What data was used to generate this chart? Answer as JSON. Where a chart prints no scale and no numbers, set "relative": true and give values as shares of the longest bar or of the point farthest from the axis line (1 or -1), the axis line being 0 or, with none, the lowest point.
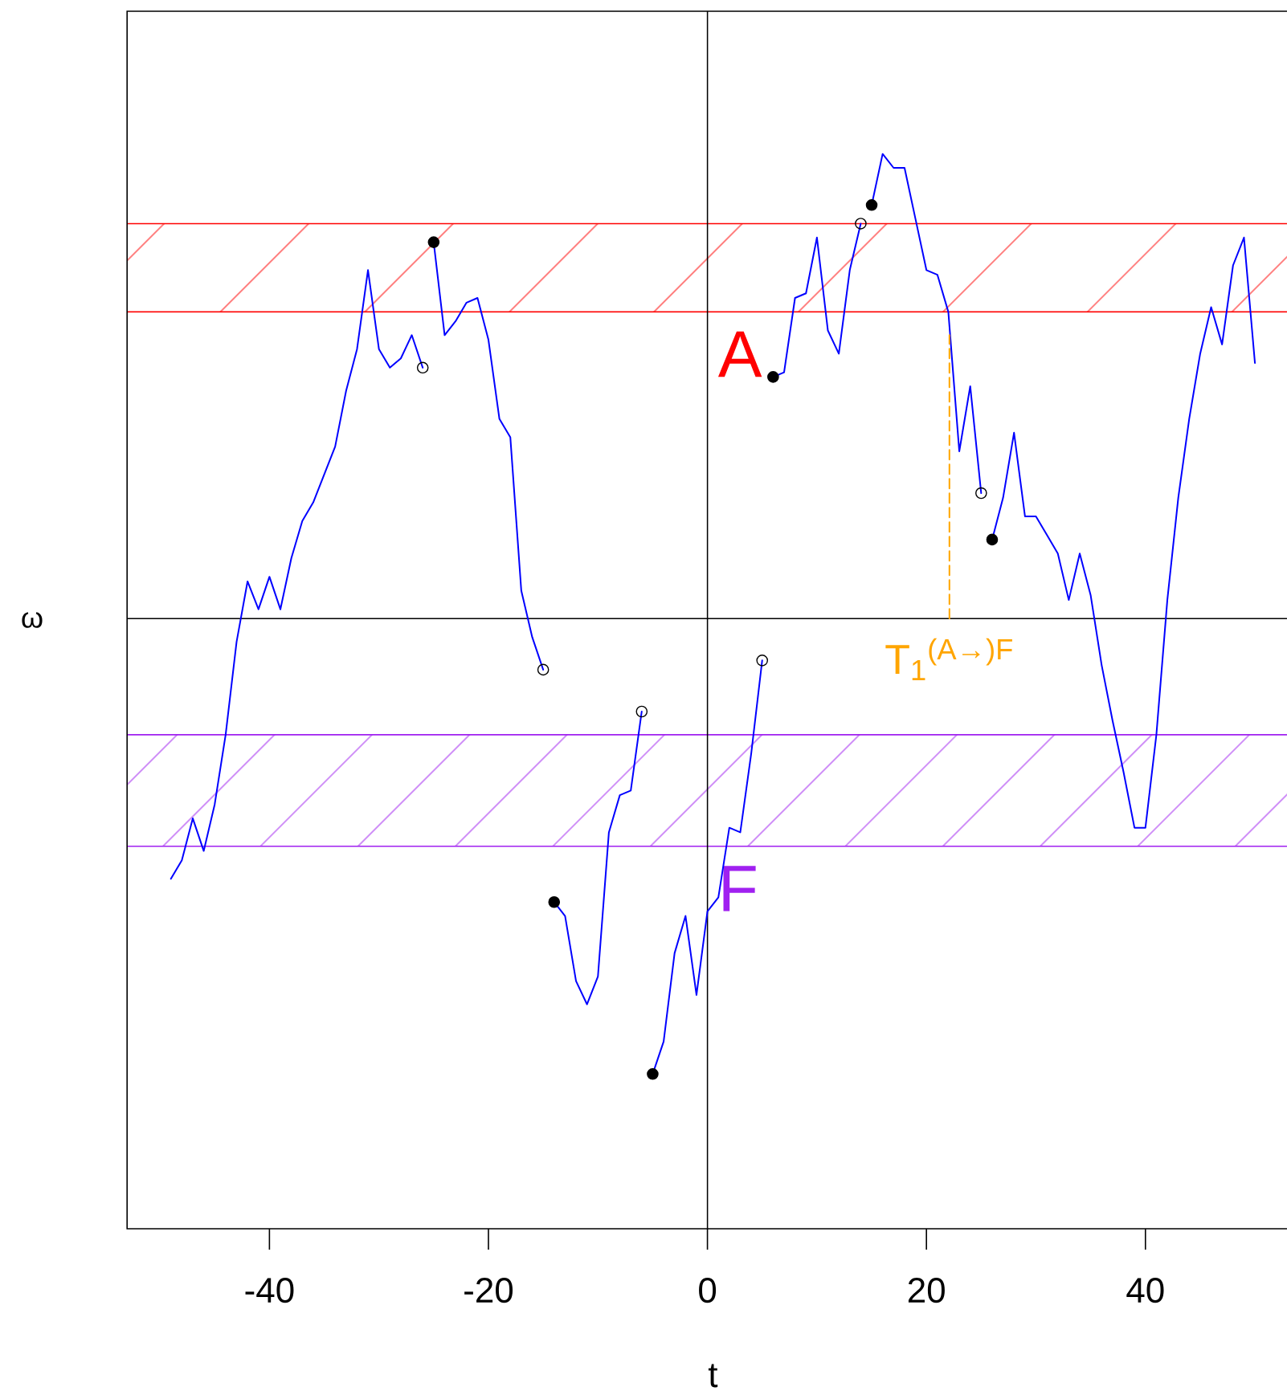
{
  "chart_data": {
    "type": "line",
    "relative": true,
    "xlabel": "t",
    "ylabel": "ω",
    "xlim": [
      -53,
      54
    ],
    "xticks": [
      -40,
      -20,
      0,
      20,
      40
    ],
    "tick_labels": "x",
    "ref_lines": [
      {
        "axis": "x",
        "value": 0,
        "color": "#000000"
      }
    ],
    "bands": [
      {
        "axis": "y",
        "from": 0.66,
        "to": 0.85,
        "label": "A",
        "color": "#ff0000"
      },
      {
        "axis": "y",
        "from": -0.49,
        "to": -0.25,
        "label": "F",
        "color": "#a020f0"
      }
    ],
    "series": [
      {
        "color": "#0000ff",
        "x": [
          -49,
          -48,
          -47,
          -46,
          -45,
          -44,
          -43,
          -42,
          -41,
          -40,
          -39,
          -38,
          -37,
          -36,
          -35,
          -34,
          -33,
          -32,
          -31,
          -30,
          -29,
          -28,
          -27,
          -26
        ],
        "values": [
          -0.56,
          -0.52,
          -0.43,
          -0.5,
          -0.4,
          -0.25,
          -0.05,
          0.08,
          0.02,
          0.09,
          0.02,
          0.13,
          0.21,
          0.25,
          0.31,
          0.37,
          0.49,
          0.58,
          0.75,
          0.58,
          0.54,
          0.56,
          0.61,
          0.54
        ]
      },
      {
        "color": "#0000ff",
        "x": [
          -25,
          -24,
          -23,
          -22,
          -21,
          -20,
          -19,
          -18,
          -17,
          -16,
          -15
        ],
        "values": [
          0.81,
          0.61,
          0.64,
          0.68,
          0.69,
          0.6,
          0.43,
          0.39,
          0.06,
          -0.04,
          -0.11
        ]
      },
      {
        "color": "#0000ff",
        "x": [
          -14,
          -13,
          -12,
          -11,
          -10,
          -9,
          -8,
          -7,
          -6
        ],
        "values": [
          -0.61,
          -0.64,
          -0.78,
          -0.83,
          -0.77,
          -0.46,
          -0.38,
          -0.37,
          -0.2
        ]
      },
      {
        "color": "#0000ff",
        "x": [
          -5,
          -4,
          -3,
          -2,
          -1,
          0,
          1,
          2,
          3,
          4,
          5
        ],
        "values": [
          -0.98,
          -0.91,
          -0.72,
          -0.64,
          -0.81,
          -0.63,
          -0.6,
          -0.45,
          -0.46,
          -0.29,
          -0.09
        ]
      },
      {
        "color": "#0000ff",
        "x": [
          6,
          7,
          8,
          9,
          10,
          11,
          12,
          13,
          14
        ],
        "values": [
          0.52,
          0.53,
          0.69,
          0.7,
          0.82,
          0.62,
          0.57,
          0.75,
          0.85
        ]
      },
      {
        "color": "#0000ff",
        "x": [
          15,
          16,
          17,
          18,
          19,
          20,
          21,
          22,
          23,
          24,
          25
        ],
        "values": [
          0.89,
          1.0,
          0.97,
          0.97,
          0.86,
          0.75,
          0.74,
          0.66,
          0.36,
          0.5,
          0.27
        ]
      },
      {
        "color": "#0000ff",
        "x": [
          26,
          27,
          28,
          29,
          30,
          31,
          32,
          33,
          34,
          35,
          36,
          37,
          38,
          39,
          40,
          41,
          42,
          43,
          44,
          45,
          46,
          47,
          48,
          49,
          50
        ],
        "values": [
          0.17,
          0.26,
          0.4,
          0.22,
          0.22,
          0.18,
          0.14,
          0.04,
          0.14,
          0.05,
          -0.1,
          -0.22,
          -0.33,
          -0.45,
          -0.45,
          -0.25,
          0.04,
          0.26,
          0.43,
          0.57,
          0.67,
          0.59,
          0.76,
          0.82,
          0.55
        ]
      },
      {
        "type": "scatter",
        "marker": "circle",
        "color": "#000000",
        "x": [
          -25,
          -14,
          -5,
          6,
          15,
          26
        ],
        "values": [
          0.81,
          -0.61,
          -0.98,
          0.52,
          0.89,
          0.17
        ]
      },
      {
        "type": "scatter",
        "marker": "open circle",
        "color": "#000000",
        "x": [
          -26,
          -15,
          -6,
          5,
          14,
          25
        ],
        "values": [
          0.54,
          -0.11,
          -0.2,
          -0.09,
          0.85,
          0.27
        ]
      },
      {
        "name": "T$_{1}$$^{(A→)F}$",
        "color": "#ffa500",
        "line_style": "dashed",
        "x": [
          22.1,
          22.1
        ],
        "values": [
          0,
          0.61
        ]
      }
    ]
  }
}
